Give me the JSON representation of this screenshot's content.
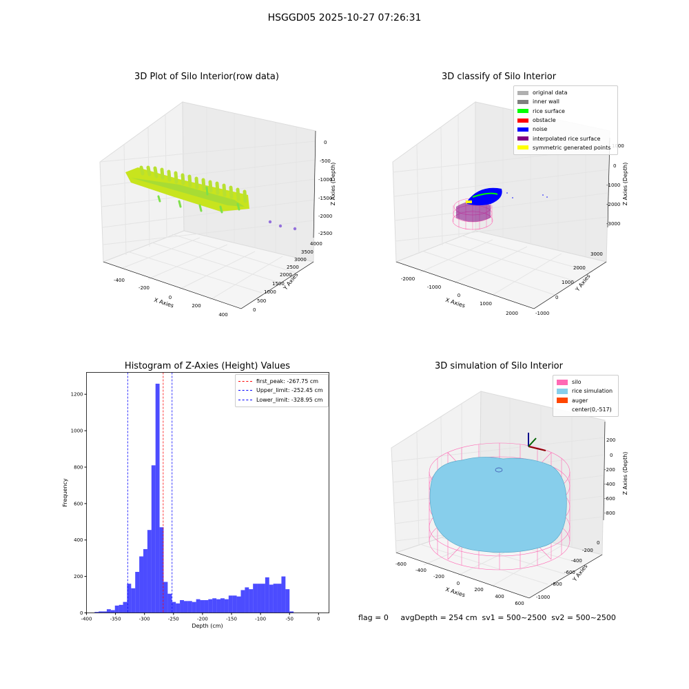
{
  "suptitle": "HSGGD05 2025-10-27 07:26:31",
  "footer": "flag = 0     avgDepth = 254 cm  sv1 = 500~2500  sv2 = 500~2500",
  "chart_data": [
    {
      "type": "scatter",
      "title": "3D Plot of Silo Interior(row data)",
      "xlabel": "X Axies",
      "ylabel": "Y Axies",
      "zlabel": "Z Axies (Depth)",
      "x_ticks": [
        "-400",
        "-200",
        "0",
        "200",
        "400"
      ],
      "y_ticks": [
        "0",
        "500",
        "1000",
        "1500",
        "2000",
        "2500",
        "3000",
        "3500",
        "4000"
      ],
      "z_ticks": [
        "0",
        "-500",
        "-1000",
        "-1500",
        "-2000",
        "-2500"
      ],
      "colors": [
        "#7ee04a",
        "#d4e81e",
        "#9370db"
      ]
    },
    {
      "type": "scatter",
      "title": "3D classify of Silo Interior",
      "xlabel": "X Axies",
      "ylabel": "Y Axies",
      "zlabel": "Z Axies (Depth)",
      "x_ticks": [
        "-2000",
        "-1000",
        "0",
        "1000",
        "2000"
      ],
      "y_ticks": [
        "-1000",
        "0",
        "1000",
        "2000",
        "3000"
      ],
      "z_ticks": [
        "1000",
        "0",
        "-1000",
        "-2000",
        "-3000"
      ],
      "legend": [
        {
          "label": "original data",
          "color": "#b0b0b0"
        },
        {
          "label": "inner wall",
          "color": "#808080"
        },
        {
          "label": "rice surface",
          "color": "#00ff00"
        },
        {
          "label": "obstacle",
          "color": "#ff0000"
        },
        {
          "label": "noise",
          "color": "#0000ff"
        },
        {
          "label": "interpolated rice surface",
          "color": "#800080"
        },
        {
          "label": "symmetric generated points",
          "color": "#ffff00"
        }
      ]
    },
    {
      "type": "bar",
      "title": "Histogram of Z-Axies (Height) Values",
      "xlabel": "Depth (cm)",
      "ylabel": "Frequency",
      "xlim": [
        -400,
        18
      ],
      "ylim": [
        0,
        1320
      ],
      "x_ticks": [
        -400,
        -350,
        -300,
        -250,
        -200,
        -150,
        -100,
        -50,
        0
      ],
      "y_ticks": [
        0,
        200,
        400,
        600,
        800,
        1000,
        1200
      ],
      "bar_color": "#0000ff",
      "bins": [
        [
          -386,
          -379,
          5
        ],
        [
          -379,
          -372,
          8
        ],
        [
          -372,
          -365,
          8
        ],
        [
          -365,
          -358,
          20
        ],
        [
          -358,
          -351,
          15
        ],
        [
          -351,
          -344,
          40
        ],
        [
          -344,
          -337,
          44
        ],
        [
          -337,
          -330,
          60
        ],
        [
          -330,
          -323,
          160
        ],
        [
          -323,
          -316,
          135
        ],
        [
          -316,
          -309,
          225
        ],
        [
          -309,
          -302,
          310
        ],
        [
          -302,
          -295,
          350
        ],
        [
          -295,
          -288,
          455
        ],
        [
          -288,
          -281,
          810
        ],
        [
          -281,
          -274,
          1258
        ],
        [
          -274,
          -267,
          470
        ],
        [
          -267,
          -260,
          170
        ],
        [
          -260,
          -253,
          105
        ],
        [
          -253,
          -246,
          60
        ],
        [
          -246,
          -239,
          52
        ],
        [
          -239,
          -232,
          70
        ],
        [
          -232,
          -225,
          65
        ],
        [
          -225,
          -218,
          65
        ],
        [
          -218,
          -211,
          60
        ],
        [
          -211,
          -204,
          75
        ],
        [
          -204,
          -197,
          70
        ],
        [
          -197,
          -190,
          70
        ],
        [
          -190,
          -183,
          75
        ],
        [
          -183,
          -176,
          80
        ],
        [
          -176,
          -169,
          75
        ],
        [
          -169,
          -162,
          80
        ],
        [
          -162,
          -155,
          75
        ],
        [
          -155,
          -148,
          95
        ],
        [
          -148,
          -141,
          95
        ],
        [
          -141,
          -134,
          90
        ],
        [
          -134,
          -127,
          125
        ],
        [
          -127,
          -120,
          140
        ],
        [
          -120,
          -113,
          130
        ],
        [
          -113,
          -106,
          160
        ],
        [
          -106,
          -99,
          160
        ],
        [
          -99,
          -92,
          160
        ],
        [
          -92,
          -85,
          195
        ],
        [
          -85,
          -78,
          155
        ],
        [
          -78,
          -71,
          160
        ],
        [
          -71,
          -64,
          160
        ],
        [
          -64,
          -57,
          200
        ],
        [
          -57,
          -50,
          130
        ],
        [
          -50,
          -43,
          8
        ]
      ],
      "lines": [
        {
          "label": "first_peak: -267.75 cm",
          "x": -267.75,
          "color": "#ff0000"
        },
        {
          "label": "Upper_limit: -252.45 cm",
          "x": -252.45,
          "color": "#0000ff"
        },
        {
          "label": "Lower_limit: -328.95 cm",
          "x": -328.95,
          "color": "#0000ff"
        }
      ]
    },
    {
      "type": "scatter",
      "title": "3D simulation of Silo Interior",
      "xlabel": "X Axies",
      "ylabel": "Y Axies",
      "zlabel": "Z Axies (Depth)",
      "x_ticks": [
        "-600",
        "-400",
        "-200",
        "0",
        "200",
        "400",
        "600"
      ],
      "y_ticks": [
        "-1000",
        "-800",
        "-600",
        "-400",
        "-200",
        "0"
      ],
      "z_ticks": [
        "200",
        "0",
        "-200",
        "-400",
        "-600",
        "-800"
      ],
      "legend": [
        {
          "label": "silo",
          "color": "#ff69b4"
        },
        {
          "label": "rice simulation",
          "color": "#87ceeb"
        },
        {
          "label": "auger",
          "color": "#ff4500"
        },
        {
          "label": "center(0,-517)",
          "color": ""
        }
      ]
    }
  ]
}
